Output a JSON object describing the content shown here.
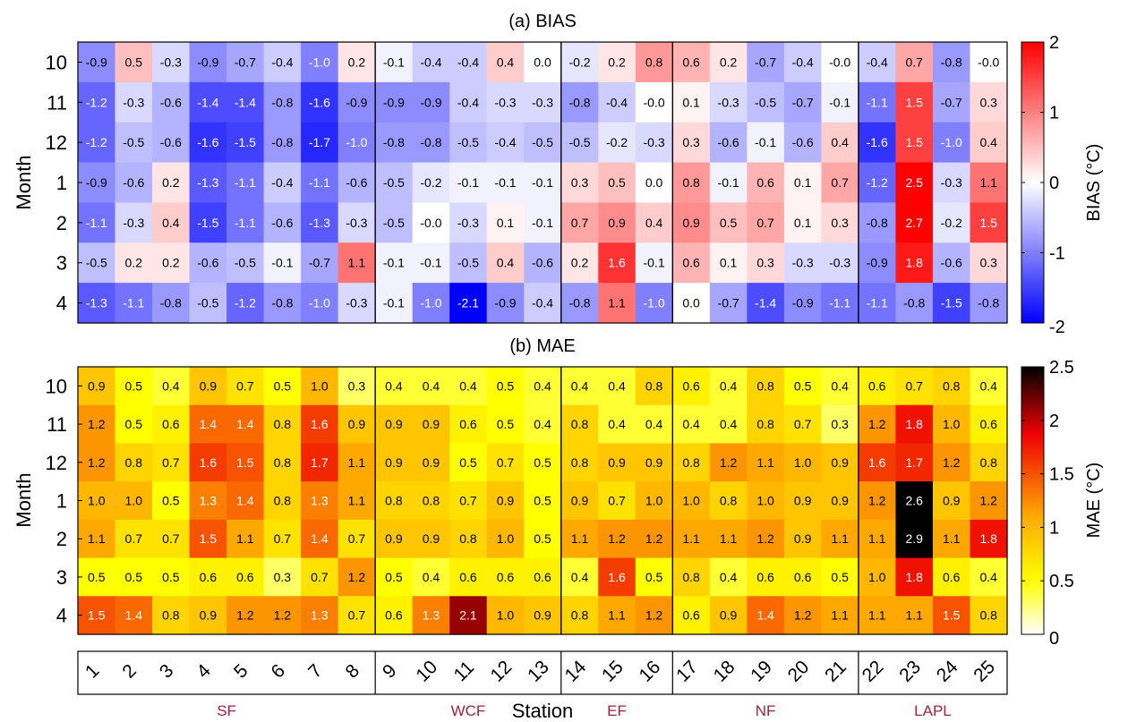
{
  "figure": {
    "xlabel": "Station",
    "ylabel": "Month",
    "stations": [
      "1",
      "2",
      "3",
      "4",
      "5",
      "6",
      "7",
      "8",
      "9",
      "10",
      "11",
      "12",
      "13",
      "14",
      "15",
      "16",
      "17",
      "18",
      "19",
      "20",
      "21",
      "22",
      "23",
      "24",
      "25"
    ],
    "months": [
      "10",
      "11",
      "12",
      "1",
      "2",
      "3",
      "4"
    ],
    "groups": [
      {
        "name": "SF",
        "count": 8
      },
      {
        "name": "WCF",
        "count": 5
      },
      {
        "name": "EF",
        "count": 3
      },
      {
        "name": "NF",
        "count": 5
      },
      {
        "name": "LAPL",
        "count": 4
      }
    ],
    "group_label_color": "#a0223a"
  },
  "chart_data": [
    {
      "type": "heatmap",
      "title": "(a) BIAS",
      "colorbar_label": "BIAS (°C)",
      "colorbar_ticks": [
        "2",
        "1",
        "0",
        "-1",
        "-2"
      ],
      "colormap": "blue-white-red",
      "zlim": [
        -2,
        2
      ],
      "rows": [
        "10",
        "11",
        "12",
        "1",
        "2",
        "3",
        "4"
      ],
      "columns": [
        "1",
        "2",
        "3",
        "4",
        "5",
        "6",
        "7",
        "8",
        "9",
        "10",
        "11",
        "12",
        "13",
        "14",
        "15",
        "16",
        "17",
        "18",
        "19",
        "20",
        "21",
        "22",
        "23",
        "24",
        "25"
      ],
      "values": [
        [
          "-0.9",
          "0.5",
          "-0.3",
          "-0.9",
          "-0.7",
          "-0.4",
          "-1.0",
          "0.2",
          "-0.1",
          "-0.4",
          "-0.4",
          "0.4",
          "0.0",
          "-0.2",
          "0.2",
          "0.8",
          "0.6",
          "0.2",
          "-0.7",
          "-0.4",
          "-0.0",
          "-0.4",
          "0.7",
          "-0.8",
          "-0.0"
        ],
        [
          "-1.2",
          "-0.3",
          "-0.6",
          "-1.4",
          "-1.4",
          "-0.8",
          "-1.6",
          "-0.9",
          "-0.9",
          "-0.9",
          "-0.4",
          "-0.3",
          "-0.3",
          "-0.8",
          "-0.4",
          "-0.0",
          "0.1",
          "-0.3",
          "-0.5",
          "-0.7",
          "-0.1",
          "-1.1",
          "1.5",
          "-0.7",
          "0.3"
        ],
        [
          "-1.2",
          "-0.5",
          "-0.6",
          "-1.6",
          "-1.5",
          "-0.8",
          "-1.7",
          "-1.0",
          "-0.8",
          "-0.8",
          "-0.5",
          "-0.4",
          "-0.5",
          "-0.5",
          "-0.2",
          "-0.3",
          "0.3",
          "-0.6",
          "-0.1",
          "-0.6",
          "0.4",
          "-1.6",
          "1.5",
          "-1.0",
          "0.4"
        ],
        [
          "-0.9",
          "-0.6",
          "0.2",
          "-1.3",
          "-1.1",
          "-0.4",
          "-1.1",
          "-0.6",
          "-0.5",
          "-0.2",
          "-0.1",
          "-0.1",
          "-0.1",
          "0.3",
          "0.5",
          "0.0",
          "0.8",
          "-0.1",
          "0.6",
          "0.1",
          "0.7",
          "-1.2",
          "2.5",
          "-0.3",
          "1.1"
        ],
        [
          "-1.1",
          "-0.3",
          "0.4",
          "-1.5",
          "-1.1",
          "-0.6",
          "-1.3",
          "-0.3",
          "-0.5",
          "-0.0",
          "-0.3",
          "0.1",
          "-0.1",
          "0.7",
          "0.9",
          "0.4",
          "0.9",
          "0.5",
          "0.7",
          "0.1",
          "0.3",
          "-0.8",
          "2.7",
          "-0.2",
          "1.5"
        ],
        [
          "-0.5",
          "0.2",
          "0.2",
          "-0.6",
          "-0.5",
          "-0.1",
          "-0.7",
          "1.1",
          "-0.1",
          "-0.1",
          "-0.5",
          "0.4",
          "-0.6",
          "0.2",
          "1.6",
          "-0.1",
          "0.6",
          "0.1",
          "0.3",
          "-0.3",
          "-0.3",
          "-0.9",
          "1.8",
          "-0.6",
          "0.3"
        ],
        [
          "-1.3",
          "-1.1",
          "-0.8",
          "-0.5",
          "-1.2",
          "-0.8",
          "-1.0",
          "-0.3",
          "-0.1",
          "-1.0",
          "-2.1",
          "-0.9",
          "-0.4",
          "-0.8",
          "1.1",
          "-1.0",
          "0.0",
          "-0.7",
          "-1.4",
          "-0.9",
          "-1.1",
          "-1.1",
          "-0.8",
          "-1.5",
          "-0.8"
        ]
      ]
    },
    {
      "type": "heatmap",
      "title": "(b) MAE",
      "colorbar_label": "MAE (°C)",
      "colorbar_ticks": [
        "2.5",
        "2",
        "1.5",
        "1",
        "0.5",
        "0"
      ],
      "colormap": "hot (white-yellow-red-black)",
      "zlim": [
        0,
        2.5
      ],
      "rows": [
        "10",
        "11",
        "12",
        "1",
        "2",
        "3",
        "4"
      ],
      "columns": [
        "1",
        "2",
        "3",
        "4",
        "5",
        "6",
        "7",
        "8",
        "9",
        "10",
        "11",
        "12",
        "13",
        "14",
        "15",
        "16",
        "17",
        "18",
        "19",
        "20",
        "21",
        "22",
        "23",
        "24",
        "25"
      ],
      "values": [
        [
          "0.9",
          "0.5",
          "0.4",
          "0.9",
          "0.7",
          "0.5",
          "1.0",
          "0.3",
          "0.4",
          "0.4",
          "0.4",
          "0.5",
          "0.4",
          "0.4",
          "0.4",
          "0.8",
          "0.6",
          "0.4",
          "0.8",
          "0.5",
          "0.4",
          "0.6",
          "0.7",
          "0.8",
          "0.4"
        ],
        [
          "1.2",
          "0.5",
          "0.6",
          "1.4",
          "1.4",
          "0.8",
          "1.6",
          "0.9",
          "0.9",
          "0.9",
          "0.6",
          "0.5",
          "0.4",
          "0.8",
          "0.4",
          "0.4",
          "0.4",
          "0.4",
          "0.8",
          "0.7",
          "0.3",
          "1.2",
          "1.8",
          "1.0",
          "0.6"
        ],
        [
          "1.2",
          "0.8",
          "0.7",
          "1.6",
          "1.5",
          "0.8",
          "1.7",
          "1.1",
          "0.9",
          "0.9",
          "0.5",
          "0.7",
          "0.5",
          "0.8",
          "0.9",
          "0.9",
          "0.8",
          "1.2",
          "1.1",
          "1.0",
          "0.9",
          "1.6",
          "1.7",
          "1.2",
          "0.8"
        ],
        [
          "1.0",
          "1.0",
          "0.5",
          "1.3",
          "1.4",
          "0.8",
          "1.3",
          "1.1",
          "0.8",
          "0.8",
          "0.7",
          "0.9",
          "0.5",
          "0.9",
          "0.7",
          "1.0",
          "1.0",
          "0.8",
          "1.0",
          "0.9",
          "0.9",
          "1.2",
          "2.6",
          "0.9",
          "1.2"
        ],
        [
          "1.1",
          "0.7",
          "0.7",
          "1.5",
          "1.1",
          "0.7",
          "1.4",
          "0.7",
          "0.9",
          "0.9",
          "0.8",
          "1.0",
          "0.5",
          "1.1",
          "1.2",
          "1.2",
          "1.1",
          "1.1",
          "1.2",
          "0.9",
          "1.1",
          "1.1",
          "2.9",
          "1.1",
          "1.8"
        ],
        [
          "0.5",
          "0.5",
          "0.5",
          "0.6",
          "0.6",
          "0.3",
          "0.7",
          "1.2",
          "0.5",
          "0.4",
          "0.6",
          "0.6",
          "0.6",
          "0.4",
          "1.6",
          "0.5",
          "0.8",
          "0.4",
          "0.6",
          "0.6",
          "0.5",
          "1.0",
          "1.8",
          "0.6",
          "0.4"
        ],
        [
          "1.5",
          "1.4",
          "0.8",
          "0.9",
          "1.2",
          "1.2",
          "1.3",
          "0.7",
          "0.6",
          "1.3",
          "2.1",
          "1.0",
          "0.9",
          "0.8",
          "1.1",
          "1.2",
          "0.6",
          "0.9",
          "1.4",
          "1.2",
          "1.1",
          "1.1",
          "1.1",
          "1.5",
          "0.8"
        ]
      ]
    }
  ]
}
